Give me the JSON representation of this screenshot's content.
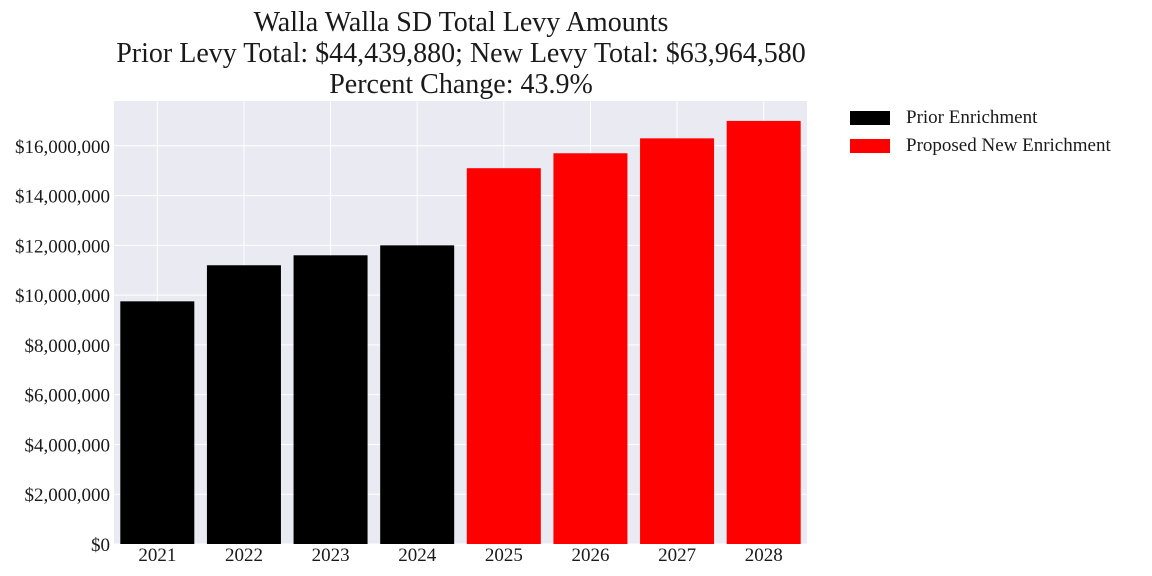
{
  "chart_data": {
    "type": "bar",
    "title": "Walla Walla SD Total Levy Amounts",
    "subtitle_lines": [
      "Prior Levy Total:  $44,439,880; New Levy Total: $63,964,580",
      "Percent Change: 43.9%"
    ],
    "categories": [
      "2021",
      "2022",
      "2023",
      "2024",
      "2025",
      "2026",
      "2027",
      "2028"
    ],
    "values": [
      9750000,
      11200000,
      11600000,
      12000000,
      15100000,
      15700000,
      16300000,
      17000000
    ],
    "series_of_bar": [
      0,
      0,
      0,
      0,
      1,
      1,
      1,
      1
    ],
    "series": [
      {
        "name": "Prior Enrichment",
        "color": "#000000"
      },
      {
        "name": "Proposed New Enrichment",
        "color": "#ff0000"
      }
    ],
    "ylim": [
      0,
      17800000
    ],
    "yticks": [
      0,
      2000000,
      4000000,
      6000000,
      8000000,
      10000000,
      12000000,
      14000000,
      16000000
    ],
    "ytick_labels": [
      "$0",
      "$2,000,000",
      "$4,000,000",
      "$6,000,000",
      "$8,000,000",
      "$10,000,000",
      "$12,000,000",
      "$14,000,000",
      "$16,000,000"
    ],
    "grid": true,
    "legend_position": "outside-right"
  }
}
